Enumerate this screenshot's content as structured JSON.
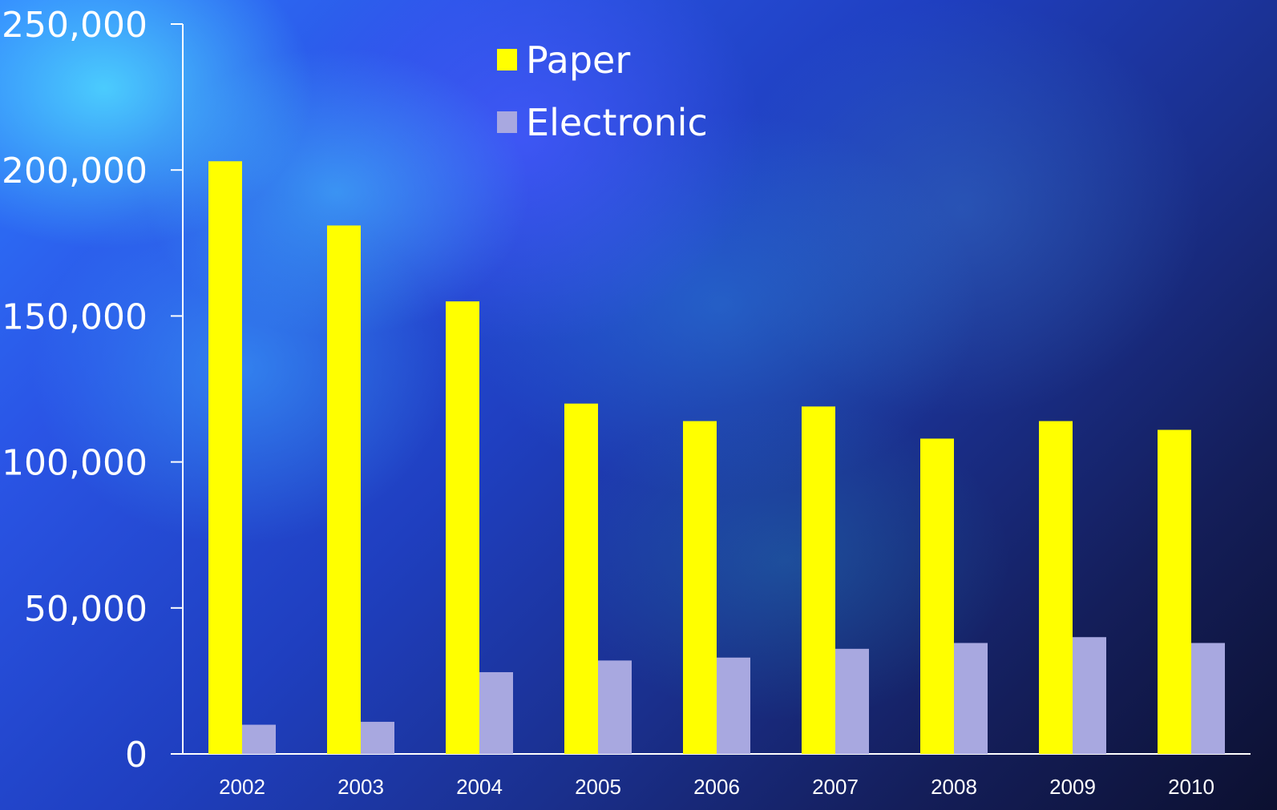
{
  "chart_data": {
    "type": "bar",
    "categories": [
      "2002",
      "2003",
      "2004",
      "2005",
      "2006",
      "2007",
      "2008",
      "2009",
      "2010"
    ],
    "series": [
      {
        "name": "Paper",
        "color": "#ffff00",
        "values": [
          203000,
          181000,
          155000,
          120000,
          114000,
          119000,
          108000,
          114000,
          111000
        ]
      },
      {
        "name": "Electronic",
        "color": "#a8a8e0",
        "values": [
          10000,
          11000,
          28000,
          32000,
          33000,
          36000,
          38000,
          40000,
          38000
        ]
      }
    ],
    "y_ticks": [
      "0",
      "50,000",
      "100,000",
      "150,000",
      "200,000",
      "250,000"
    ],
    "ylim": [
      0,
      250000
    ],
    "title": "",
    "xlabel": "",
    "ylabel": "",
    "grid": false,
    "legend": "top-center",
    "axis_color": "#ffffff"
  }
}
